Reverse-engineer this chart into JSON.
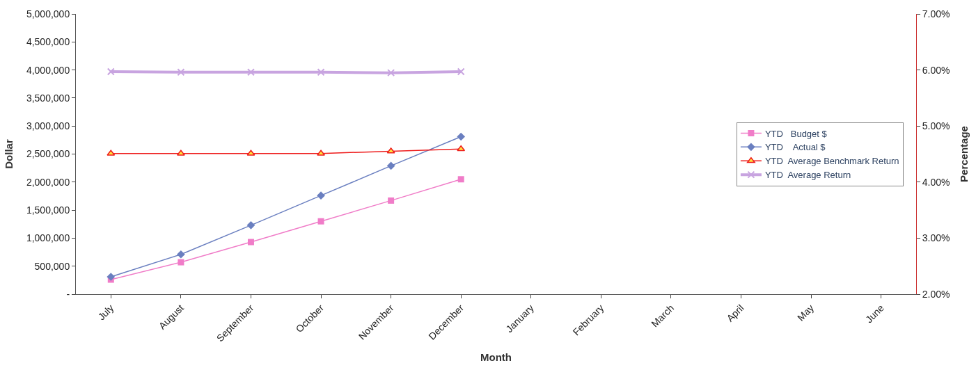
{
  "chart_data": {
    "type": "line",
    "xlabel": "Month",
    "ylabel": "Dollar",
    "y2label": "Percentage",
    "categories": [
      "July",
      "August",
      "September",
      "October",
      "November",
      "December",
      "January",
      "February",
      "March",
      "April",
      "May",
      "June"
    ],
    "series": [
      {
        "name": "YTD   Budget $",
        "color": "#f07cc8",
        "marker": "square",
        "values": [
          260000,
          570000,
          930000,
          1300000,
          1670000,
          2050000,
          null,
          null,
          null,
          null,
          null,
          null
        ]
      },
      {
        "name": "YTD    Actual $",
        "color": "#6a7fc0",
        "marker": "diamond",
        "values": [
          310000,
          710000,
          1230000,
          1760000,
          2290000,
          2810000,
          null,
          null,
          null,
          null,
          null,
          null
        ]
      },
      {
        "name": "YTD  Average Benchmark Return",
        "color": "#ee1c1c",
        "marker": "triangle",
        "axis": "y2",
        "values": [
          4.51,
          4.51,
          4.51,
          4.51,
          4.55,
          4.59,
          null,
          null,
          null,
          null,
          null,
          null
        ]
      },
      {
        "name": "YTD  Average Return",
        "color": "#c8a4e0",
        "marker": "cross",
        "axis": "y2",
        "values": [
          5.97,
          5.96,
          5.96,
          5.96,
          5.95,
          5.97,
          null,
          null,
          null,
          null,
          null,
          null
        ]
      }
    ],
    "ylim": [
      0,
      5000000
    ],
    "yticks": [
      {
        "value": 0,
        "label": "-"
      },
      {
        "value": 500000,
        "label": "500,000"
      },
      {
        "value": 1000000,
        "label": "1,000,000"
      },
      {
        "value": 1500000,
        "label": "1,500,000"
      },
      {
        "value": 2000000,
        "label": "2,000,000"
      },
      {
        "value": 2500000,
        "label": "2,500,000"
      },
      {
        "value": 3000000,
        "label": "3,000,000"
      },
      {
        "value": 3500000,
        "label": "3,500,000"
      },
      {
        "value": 4000000,
        "label": "4,000,000"
      },
      {
        "value": 4500000,
        "label": "4,500,000"
      },
      {
        "value": 5000000,
        "label": "5,000,000"
      }
    ],
    "y2lim": [
      2,
      7
    ],
    "y2ticks": [
      {
        "value": 2,
        "label": "2.00%"
      },
      {
        "value": 3,
        "label": "3.00%"
      },
      {
        "value": 4,
        "label": "4.00%"
      },
      {
        "value": 5,
        "label": "5.00%"
      },
      {
        "value": 6,
        "label": "6.00%"
      },
      {
        "value": 7,
        "label": "7.00%"
      }
    ],
    "legend": "right",
    "line_style": "solid"
  }
}
